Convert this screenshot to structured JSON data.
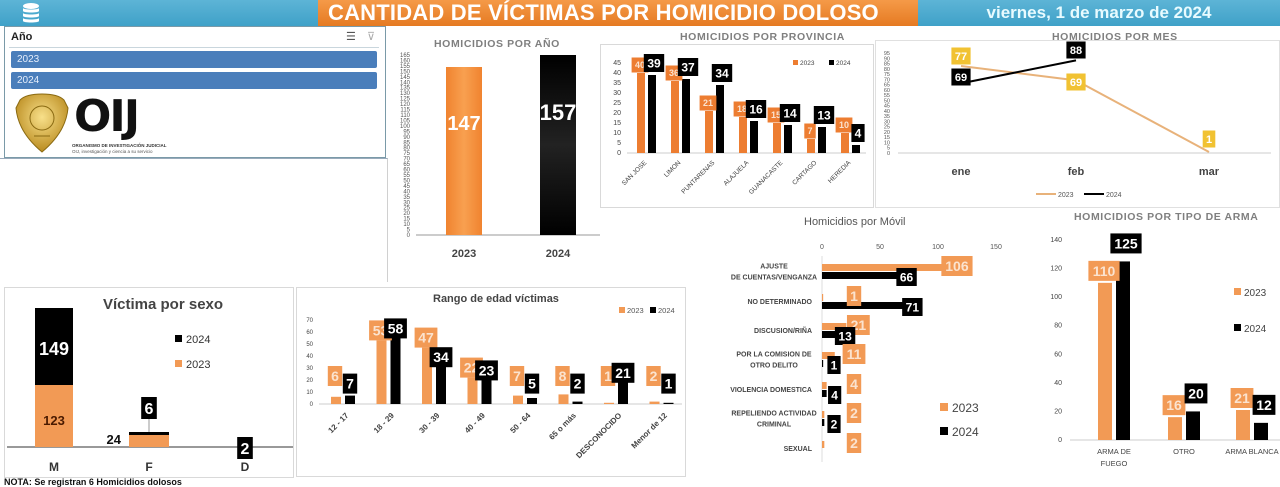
{
  "header": {
    "title": "CANTIDAD DE VÍCTIMAS POR HOMICIDIO DOLOSO",
    "date": "viernes, 1 de marzo de 2024",
    "db_icon": "database-icon"
  },
  "slicer": {
    "title": "Año",
    "items": [
      {
        "label": "2023"
      },
      {
        "label": "2024"
      }
    ],
    "icons": [
      "multi-select-icon",
      "clear-filter-icon"
    ]
  },
  "logo": {
    "text": "OIJ",
    "subtitle": "ORGANISMO DE INVESTIGACIÓN JUDICIAL",
    "tagline": "OIJ, investigación y ciencia a su servicio"
  },
  "note": "NOTA: Se registran 6 Homicidios dolosos",
  "colors": {
    "y2023": "#ed7d31",
    "y2024": "#000000",
    "month2023": "#f1c232",
    "header_blue": "#4aa8cf",
    "header_orange": "#f08a35"
  },
  "chart_data": [
    {
      "id": "por_anio",
      "type": "bar",
      "title": "HOMICIDIOS POR AÑO",
      "categories": [
        "2023",
        "2024"
      ],
      "values": [
        147,
        157
      ],
      "ylim": [
        0,
        165
      ],
      "yticks_step": 5
    },
    {
      "id": "por_provincia",
      "type": "bar",
      "title": "HOMICIDIOS POR PROVINCIA",
      "categories": [
        "SAN JOSE",
        "LIMON",
        "PUNTARENAS",
        "ALAJUELA",
        "GUANACASTE",
        "CARTAGO",
        "HEREDIA"
      ],
      "series": [
        {
          "name": "2023",
          "values": [
            40,
            36,
            21,
            18,
            15,
            7,
            10
          ]
        },
        {
          "name": "2024",
          "values": [
            39,
            37,
            34,
            16,
            14,
            13,
            4
          ]
        }
      ],
      "ylim": [
        0,
        45
      ],
      "yticks": [
        0,
        5,
        10,
        15,
        20,
        25,
        30,
        35,
        40,
        45
      ],
      "legend": [
        "2023",
        "2024"
      ]
    },
    {
      "id": "por_mes",
      "type": "line",
      "title": "HOMICIDIOS POR MES",
      "categories": [
        "ene",
        "feb",
        "mar"
      ],
      "series": [
        {
          "name": "2023",
          "values": [
            77,
            69,
            1
          ]
        },
        {
          "name": "2024",
          "values": [
            69,
            88,
            null
          ]
        }
      ],
      "ylim": [
        0,
        95
      ],
      "yticks_step": 5,
      "legend": [
        "2023",
        "2024"
      ]
    },
    {
      "id": "por_sexo",
      "type": "bar",
      "stacked": true,
      "title": "Víctima por sexo",
      "categories": [
        "M",
        "F",
        "D"
      ],
      "series": [
        {
          "name": "2023",
          "values": [
            123,
            24,
            0
          ]
        },
        {
          "name": "2024",
          "values": [
            149,
            6,
            2
          ]
        }
      ],
      "legend": [
        "2024",
        "2023"
      ]
    },
    {
      "id": "rango_edad",
      "type": "bar",
      "title": "Rango de edad víctimas",
      "categories": [
        "12 - 17",
        "18 - 29",
        "30 - 39",
        "40 - 49",
        "50 - 64",
        "65 o más",
        "DESCONOCIDO",
        "Menor de 12"
      ],
      "series": [
        {
          "name": "2023",
          "values": [
            6,
            53,
            47,
            22,
            7,
            8,
            1,
            2
          ]
        },
        {
          "name": "2024",
          "values": [
            7,
            58,
            34,
            23,
            5,
            2,
            21,
            1
          ]
        }
      ],
      "ylim": [
        0,
        70
      ],
      "yticks": [
        0,
        10,
        20,
        30,
        40,
        50,
        60,
        70
      ],
      "legend": [
        "2023",
        "2024"
      ]
    },
    {
      "id": "por_movil",
      "type": "bar",
      "orientation": "horizontal",
      "title": "Homicidios por Móvil",
      "categories": [
        "AJUSTE DE CUENTAS/VENGANZA",
        "NO DETERMINADO",
        "DISCUSION/RIÑA",
        "POR LA COMISION DE OTRO DELITO",
        "VIOLENCIA DOMESTICA",
        "REPELIENDO ACTIVIDAD CRIMINAL",
        "SEXUAL"
      ],
      "series": [
        {
          "name": "2023",
          "values": [
            106,
            1,
            21,
            11,
            4,
            2,
            2
          ]
        },
        {
          "name": "2024",
          "values": [
            66,
            71,
            13,
            1,
            4,
            2,
            0
          ]
        }
      ],
      "xlim": [
        0,
        150
      ],
      "xticks": [
        0,
        50,
        100,
        150
      ],
      "legend": [
        "2023",
        "2024"
      ]
    },
    {
      "id": "tipo_arma",
      "type": "bar",
      "title": "HOMICIDIOS POR TIPO DE ARMA",
      "categories": [
        "ARMA DE FUEGO",
        "OTRO",
        "ARMA BLANCA"
      ],
      "series": [
        {
          "name": "2023",
          "values": [
            110,
            16,
            21
          ]
        },
        {
          "name": "2024",
          "values": [
            125,
            20,
            12
          ]
        }
      ],
      "ylim": [
        0,
        140
      ],
      "yticks": [
        0,
        20,
        40,
        60,
        80,
        100,
        120,
        140
      ],
      "legend": [
        "2023",
        "2024"
      ]
    }
  ]
}
